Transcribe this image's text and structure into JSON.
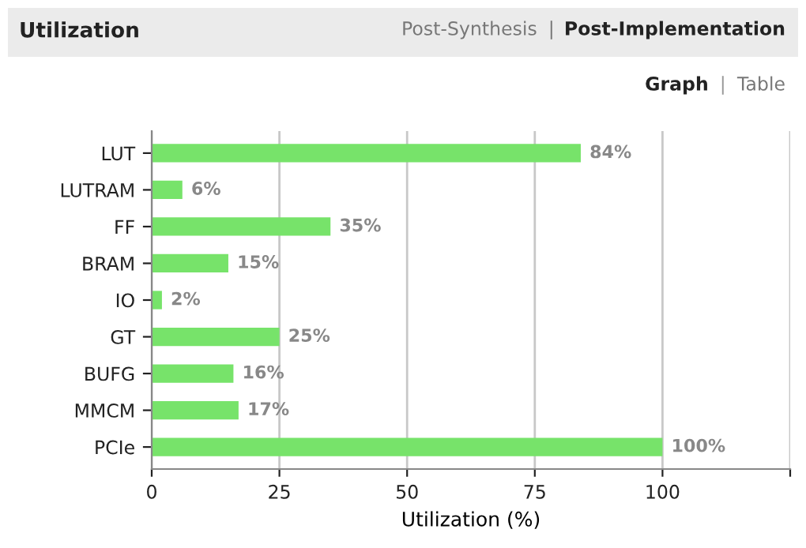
{
  "chart_data": {
    "type": "bar",
    "orientation": "horizontal",
    "title": "Utilization",
    "xlabel": "Utilization (%)",
    "categories": [
      "LUT",
      "LUTRAM",
      "FF",
      "BRAM",
      "IO",
      "GT",
      "BUFG",
      "MMCM",
      "PCIe"
    ],
    "values": [
      84,
      6,
      35,
      15,
      2,
      25,
      16,
      17,
      100
    ],
    "value_labels": [
      "84%",
      "6%",
      "35%",
      "15%",
      "2%",
      "25%",
      "16%",
      "17%",
      "100%"
    ],
    "color": "#77e36a",
    "xlim": [
      0,
      125
    ],
    "xticks": [
      0,
      25,
      50,
      75,
      100,
      {
        "value": 125,
        "label": null
      }
    ],
    "grid": "x",
    "annotations": [
      "Post-Synthesis",
      "|",
      "Post-Implementation",
      "Graph",
      "|",
      "Table"
    ]
  }
}
